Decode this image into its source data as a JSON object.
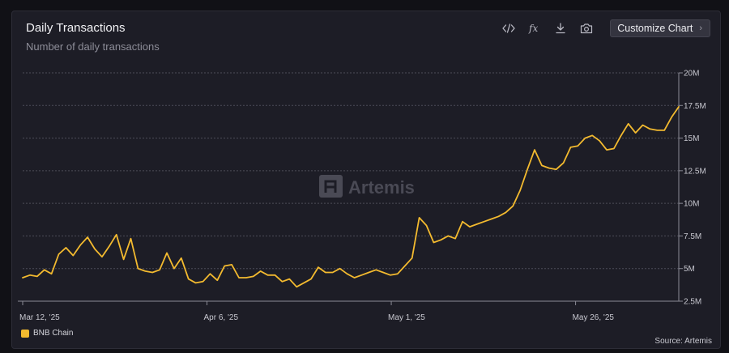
{
  "header": {
    "title": "Daily Transactions",
    "subtitle": "Number of daily transactions",
    "customize_label": "Customize Chart",
    "chevron": "›"
  },
  "toolbar_icons": [
    "embed-code-icon",
    "formula-fx-icon",
    "download-icon",
    "camera-icon"
  ],
  "watermark": "Artemis",
  "source": "Source: Artemis",
  "chart_data": {
    "type": "line",
    "title": "Daily Transactions",
    "subtitle": "Number of daily transactions",
    "xlabel": "",
    "ylabel": "",
    "x_start": "2025-03-12",
    "x_end": "2025-06-09",
    "x_ticks": [
      "Mar 12, '25",
      "Apr 6, '25",
      "May 1, '25",
      "May 26, '25"
    ],
    "x_tick_dates": [
      "2025-03-12",
      "2025-04-06",
      "2025-05-01",
      "2025-05-26"
    ],
    "y_ticks": [
      "2.5M",
      "5M",
      "7.5M",
      "10M",
      "12.5M",
      "15M",
      "17.5M",
      "20M"
    ],
    "y_tick_values": [
      2500000,
      5000000,
      7500000,
      10000000,
      12500000,
      15000000,
      17500000,
      20000000
    ],
    "ylim": [
      2500000,
      20000000
    ],
    "grid": true,
    "legend_position": "bottom-left",
    "series": [
      {
        "name": "BNB Chain",
        "color": "#f3ba2f",
        "values": [
          4300000,
          4500000,
          4400000,
          4900000,
          4600000,
          6100000,
          6600000,
          6000000,
          6800000,
          7400000,
          6500000,
          5900000,
          6700000,
          7600000,
          5700000,
          7300000,
          5000000,
          4800000,
          4700000,
          4900000,
          6200000,
          5000000,
          5800000,
          4200000,
          3900000,
          4000000,
          4600000,
          4100000,
          5200000,
          5300000,
          4300000,
          4300000,
          4400000,
          4800000,
          4500000,
          4500000,
          4000000,
          4200000,
          3600000,
          3900000,
          4200000,
          5100000,
          4700000,
          4700000,
          5000000,
          4600000,
          4300000,
          4500000,
          4700000,
          4900000,
          4700000,
          4500000,
          4600000,
          5200000,
          5800000,
          8900000,
          8300000,
          7000000,
          7200000,
          7500000,
          7300000,
          8600000,
          8200000,
          8400000,
          8600000,
          8800000,
          9000000,
          9300000,
          9800000,
          11000000,
          12600000,
          14100000,
          12900000,
          12700000,
          12600000,
          13100000,
          14300000,
          14400000,
          15000000,
          15200000,
          14800000,
          14100000,
          14200000,
          15200000,
          16100000,
          15400000,
          16000000,
          15700000,
          15600000,
          15600000,
          16600000,
          17400000
        ]
      }
    ]
  }
}
